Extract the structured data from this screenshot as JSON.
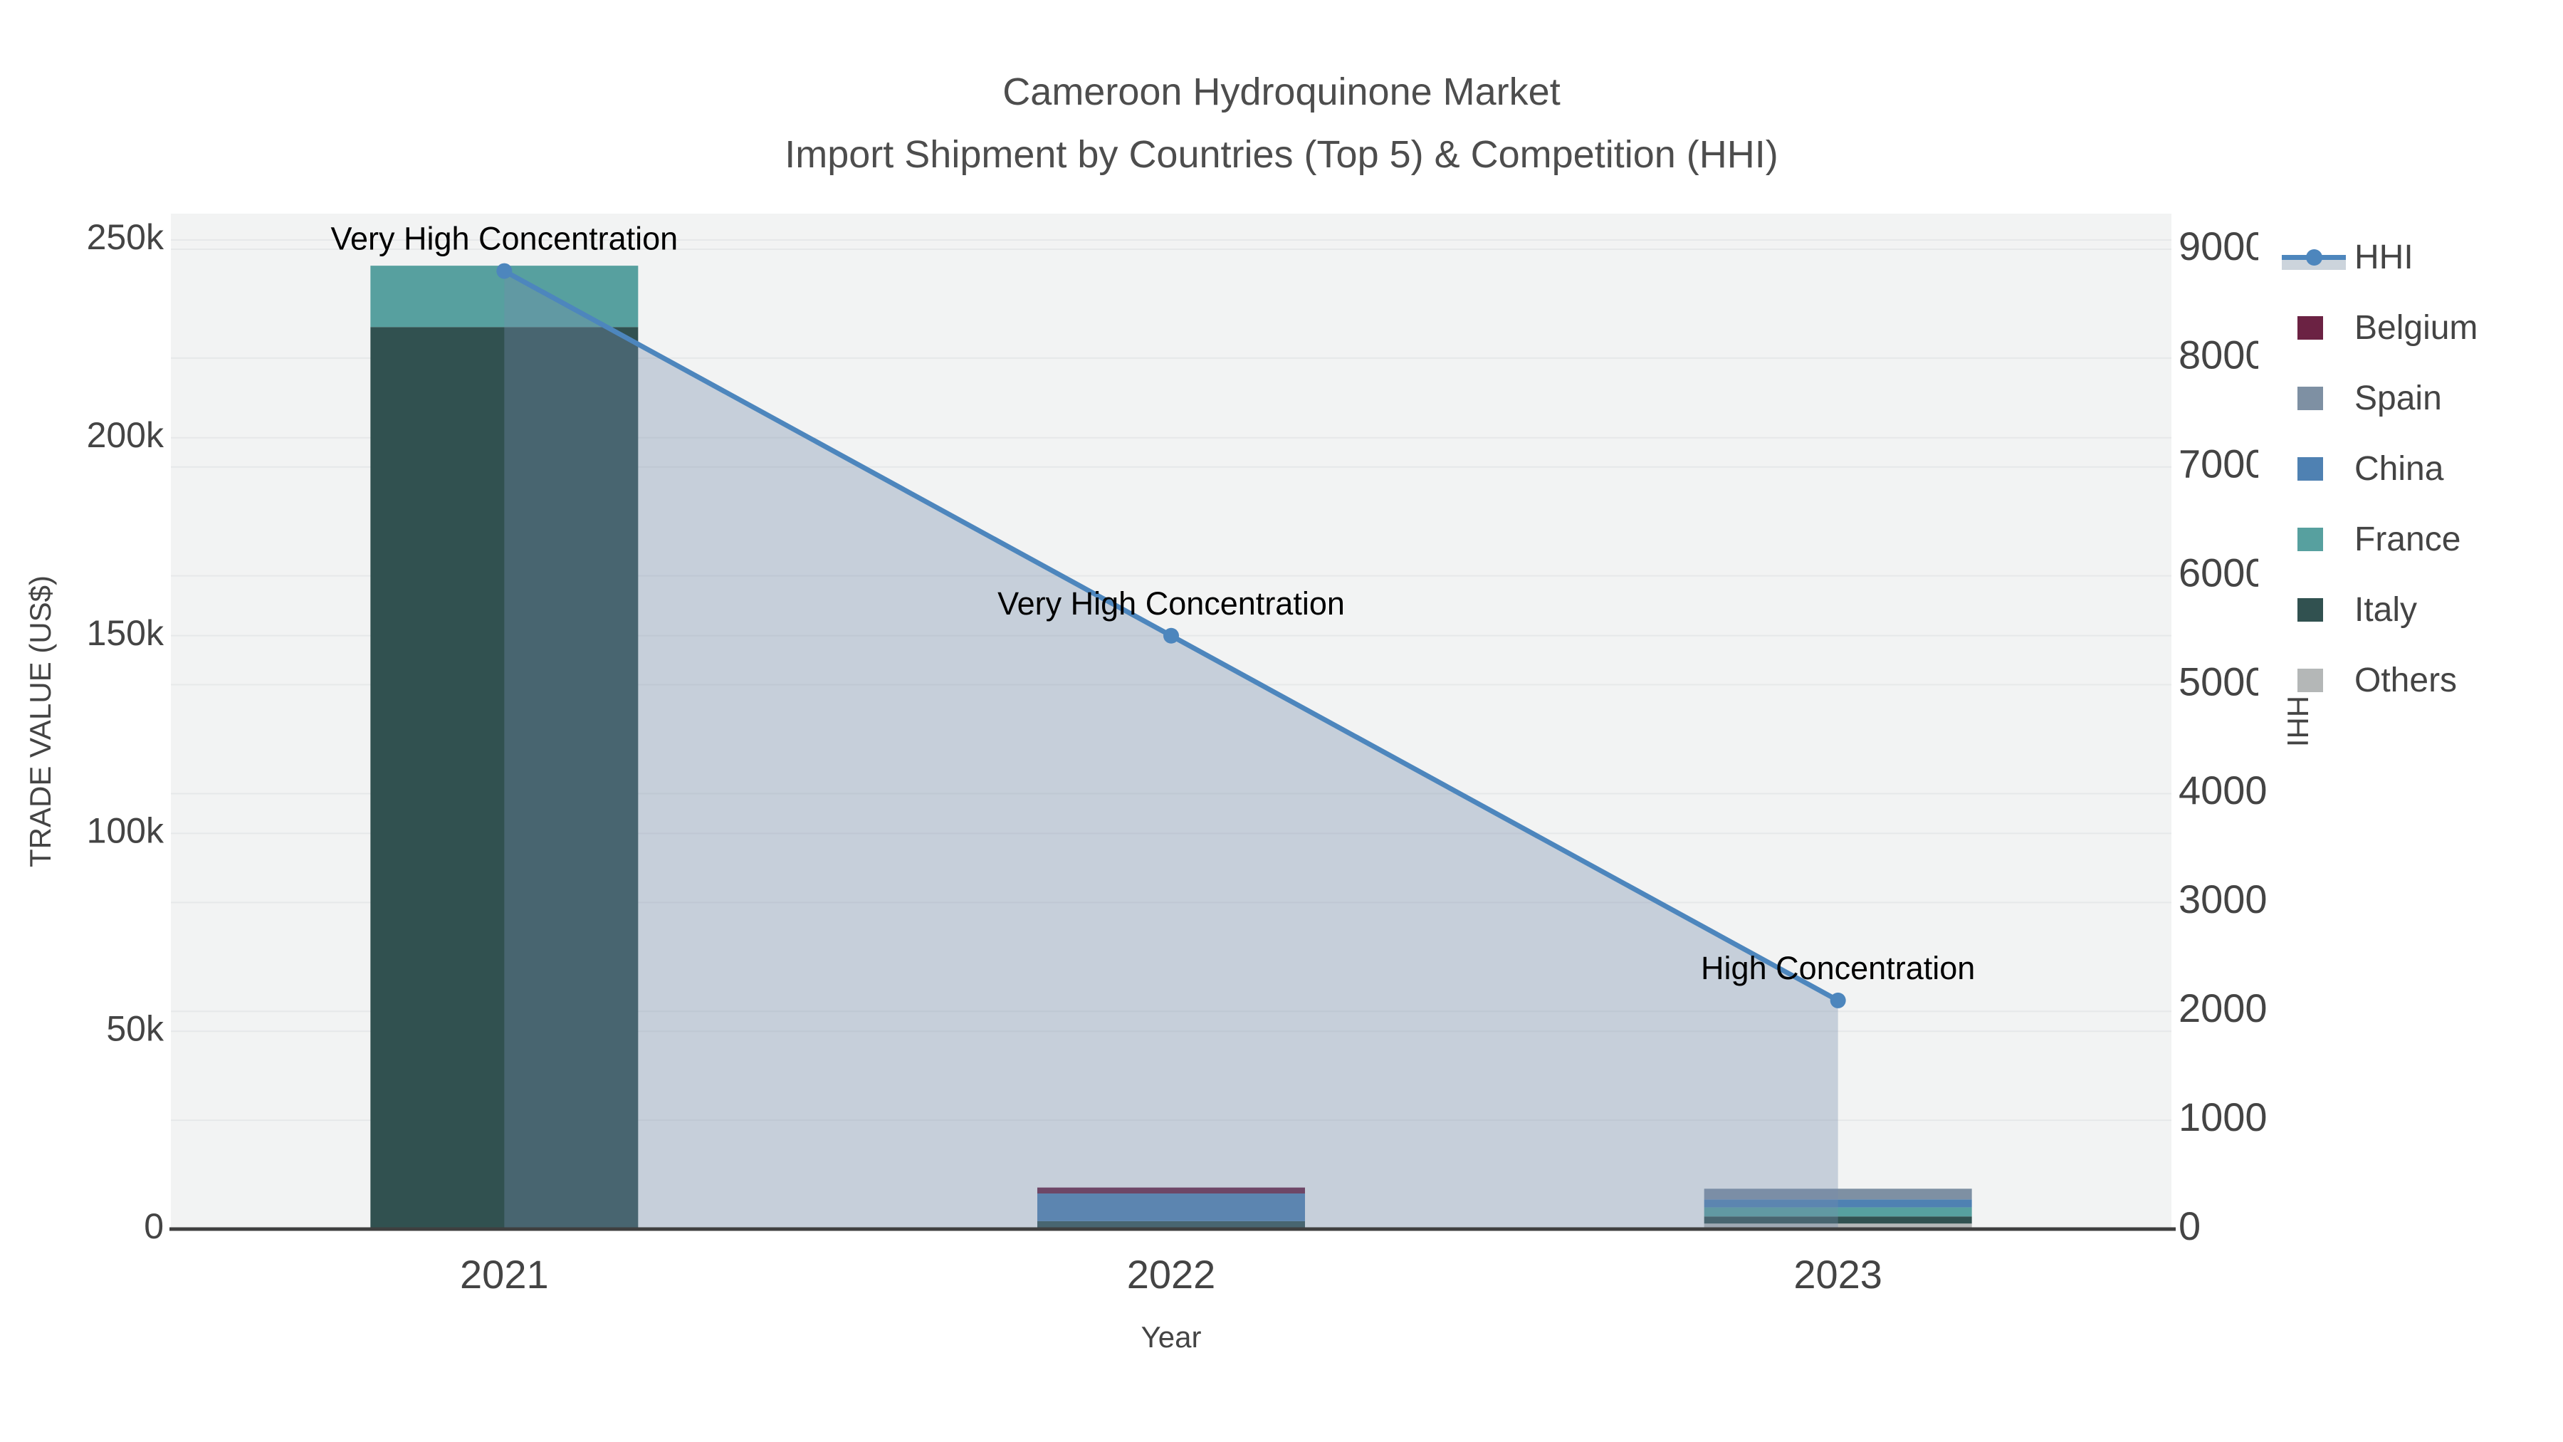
{
  "title": {
    "line1": "Cameroon Hydroquinone Market",
    "line2": "Import Shipment by Countries (Top 5) & Competition (HHI)"
  },
  "axes": {
    "x": {
      "title": "Year"
    },
    "y_left": {
      "title": "TRADE VALUE (US$)"
    },
    "y_right": {
      "title": "HHI"
    }
  },
  "legend": {
    "items": [
      {
        "label": "HHI",
        "series": "HHI",
        "symbol": "line"
      },
      {
        "label": "Belgium",
        "series": "Belgium",
        "symbol": "swatch"
      },
      {
        "label": "Spain",
        "series": "Spain",
        "symbol": "swatch"
      },
      {
        "label": "China",
        "series": "China",
        "symbol": "swatch"
      },
      {
        "label": "France",
        "series": "France",
        "symbol": "swatch"
      },
      {
        "label": "Italy",
        "series": "Italy",
        "symbol": "swatch"
      },
      {
        "label": "Others",
        "series": "Others",
        "symbol": "swatch"
      }
    ]
  },
  "colors": {
    "plot_bg": "#f2f3f3",
    "grid": "#e6e8e9",
    "axis_line": "#3f3f3f",
    "tick_text": "#444444",
    "title_text": "#4d4d4d",
    "annotation_text": "#000000",
    "hhi_line": "#4d86bd",
    "hhi_fill": "#768dad",
    "hhi_legend_band": "#ccd4dc"
  },
  "chart_data": {
    "type": "bar+line",
    "title": "Cameroon Hydroquinone Market — Import Shipment by Countries (Top 5) & Competition (HHI)",
    "xlabel": "Year",
    "ylabel": "TRADE VALUE (US$)",
    "ylabel_right": "HHI",
    "categories": [
      "2021",
      "2022",
      "2023"
    ],
    "ylim_left": [
      0,
      250000
    ],
    "ylim_right": [
      0,
      9000
    ],
    "grid": true,
    "legend_position": "outside-top-right",
    "y_left_ticks": {
      "values": [
        0,
        50000,
        100000,
        150000,
        200000,
        250000
      ],
      "labels": [
        "0",
        "50k",
        "100k",
        "150k",
        "200k",
        "250k"
      ]
    },
    "y_right_ticks": {
      "values": [
        0,
        1000,
        2000,
        3000,
        4000,
        5000,
        6000,
        7000,
        8000,
        9000
      ],
      "labels": [
        "0",
        "1000",
        "2000",
        "3000",
        "4000",
        "5000",
        "6000",
        "7000",
        "8000",
        "9000"
      ]
    },
    "stack_order_bottom_to_top": [
      "Others",
      "Italy",
      "France",
      "China",
      "Spain",
      "Belgium"
    ],
    "series": [
      {
        "name": "Belgium",
        "type": "bar",
        "axis": "left",
        "color": "#6b2243",
        "values": [
          0,
          1500,
          0
        ]
      },
      {
        "name": "Spain",
        "type": "bar",
        "axis": "left",
        "color": "#7e90a3",
        "values": [
          0,
          0,
          2700
        ]
      },
      {
        "name": "China",
        "type": "bar",
        "axis": "left",
        "color": "#4f81b2",
        "values": [
          0,
          7000,
          2000
        ]
      },
      {
        "name": "France",
        "type": "bar",
        "axis": "left",
        "color": "#57a09f",
        "values": [
          15500,
          0,
          2300
        ]
      },
      {
        "name": "Italy",
        "type": "bar",
        "axis": "left",
        "color": "#315150",
        "values": [
          228000,
          2000,
          1800
        ]
      },
      {
        "name": "Others",
        "type": "bar",
        "axis": "left",
        "color": "#b4b7b7",
        "values": [
          0,
          0,
          1400
        ]
      },
      {
        "name": "HHI",
        "type": "line+area",
        "axis": "right",
        "color": "#4d86bd",
        "fill_color": "#768dad",
        "fill_opacity": 0.35,
        "values": [
          8800,
          5450,
          2100
        ]
      }
    ],
    "annotations": [
      {
        "category": "2021",
        "text": "Very High Concentration"
      },
      {
        "category": "2022",
        "text": "Very High Concentration"
      },
      {
        "category": "2023",
        "text": "High Concentration"
      }
    ]
  }
}
